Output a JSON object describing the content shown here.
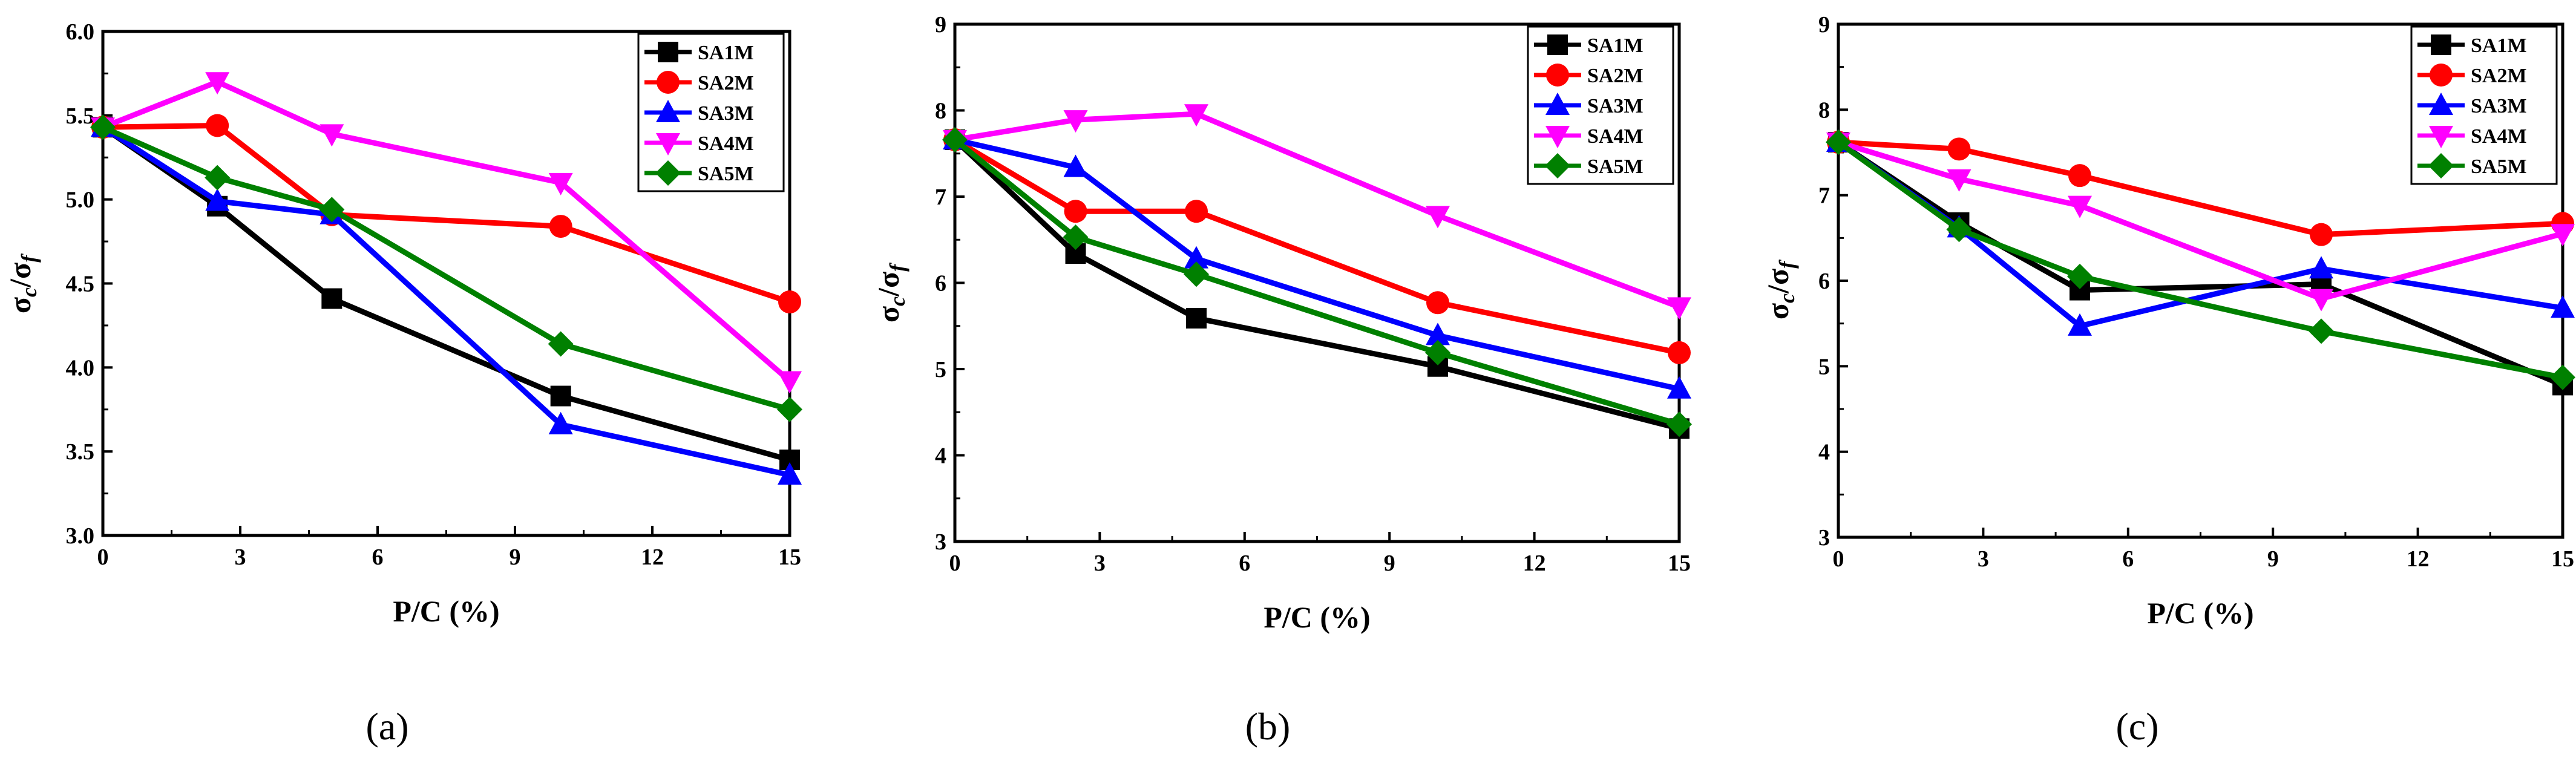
{
  "figure": {
    "xlabel": "P/C (%)",
    "ylabel_parts": [
      "σ",
      "c",
      "/σ",
      "f"
    ]
  },
  "series_styles": [
    {
      "name": "SA1M",
      "color": "#000000",
      "marker": "square"
    },
    {
      "name": "SA2M",
      "color": "#ff0000",
      "marker": "circle"
    },
    {
      "name": "SA3M",
      "color": "#0000ff",
      "marker": "triangle-up"
    },
    {
      "name": "SA4M",
      "color": "#ff00ff",
      "marker": "triangle-down"
    },
    {
      "name": "SA5M",
      "color": "#008000",
      "marker": "diamond"
    }
  ],
  "chart_data": [
    {
      "type": "line",
      "panel_label": "(a)",
      "title": "",
      "xlabel": "P/C (%)",
      "ylabel": "σc/σf",
      "x": [
        0,
        2.5,
        5,
        10,
        15
      ],
      "xlim": [
        0,
        15
      ],
      "ylim": [
        3.0,
        6.0
      ],
      "xticks": [
        "0",
        "3",
        "6",
        "9",
        "12",
        "15"
      ],
      "yticks": [
        "3.0",
        "3.5",
        "4.0",
        "4.5",
        "5.0",
        "5.5",
        "6.0"
      ],
      "legend_position": "top-right",
      "series": [
        {
          "name": "SA1M",
          "values": [
            5.43,
            4.96,
            4.41,
            3.83,
            3.45
          ]
        },
        {
          "name": "SA2M",
          "values": [
            5.43,
            5.44,
            4.91,
            4.84,
            4.39
          ]
        },
        {
          "name": "SA3M",
          "values": [
            5.43,
            4.99,
            4.91,
            3.66,
            3.36
          ]
        },
        {
          "name": "SA4M",
          "values": [
            5.43,
            5.7,
            5.39,
            5.1,
            3.92
          ]
        },
        {
          "name": "SA5M",
          "values": [
            5.43,
            5.13,
            4.94,
            4.14,
            3.75
          ]
        }
      ]
    },
    {
      "type": "line",
      "panel_label": "(b)",
      "title": "",
      "xlabel": "P/C (%)",
      "ylabel": "σc/σf",
      "x": [
        0,
        2.5,
        5,
        10,
        15
      ],
      "xlim": [
        0,
        15
      ],
      "ylim": [
        3,
        9
      ],
      "xticks": [
        "0",
        "3",
        "6",
        "9",
        "12",
        "15"
      ],
      "yticks": [
        "3",
        "4",
        "5",
        "6",
        "7",
        "8",
        "9"
      ],
      "legend_position": "top-right",
      "series": [
        {
          "name": "SA1M",
          "values": [
            7.66,
            6.34,
            5.59,
            5.03,
            4.31
          ]
        },
        {
          "name": "SA2M",
          "values": [
            7.66,
            6.83,
            6.83,
            5.77,
            5.19
          ]
        },
        {
          "name": "SA3M",
          "values": [
            7.66,
            7.34,
            6.28,
            5.39,
            4.77
          ]
        },
        {
          "name": "SA4M",
          "values": [
            7.66,
            7.89,
            7.96,
            6.78,
            5.72
          ]
        },
        {
          "name": "SA5M",
          "values": [
            7.66,
            6.53,
            6.1,
            5.19,
            4.36
          ]
        }
      ]
    },
    {
      "type": "line",
      "panel_label": "(c)",
      "title": "",
      "xlabel": "P/C (%)",
      "ylabel": "σc/σf",
      "x": [
        0,
        2.5,
        5,
        10,
        15
      ],
      "xlim": [
        0,
        15
      ],
      "ylim": [
        3,
        9
      ],
      "xticks": [
        "0",
        "3",
        "6",
        "9",
        "12",
        "15"
      ],
      "yticks": [
        "3",
        "4",
        "5",
        "6",
        "7",
        "8",
        "9"
      ],
      "legend_position": "top-right",
      "series": [
        {
          "name": "SA1M",
          "values": [
            7.62,
            6.68,
            5.89,
            5.96,
            4.78
          ]
        },
        {
          "name": "SA2M",
          "values": [
            7.62,
            7.54,
            7.23,
            6.54,
            6.67
          ]
        },
        {
          "name": "SA3M",
          "values": [
            7.62,
            6.62,
            5.47,
            6.14,
            5.68
          ]
        },
        {
          "name": "SA4M",
          "values": [
            7.62,
            7.19,
            6.88,
            5.79,
            6.55
          ]
        },
        {
          "name": "SA5M",
          "values": [
            7.62,
            6.6,
            6.05,
            5.41,
            4.87
          ]
        }
      ]
    }
  ]
}
